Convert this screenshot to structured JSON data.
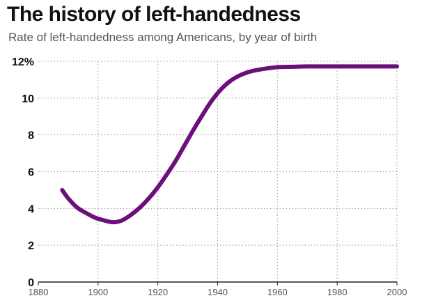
{
  "title": "The history of left-handedness",
  "subtitle": "Rate of left-handedness among Americans, by year of birth",
  "chart_data": {
    "type": "line",
    "title": "The history of left-handedness",
    "subtitle": "Rate of left-handedness among Americans, by year of birth",
    "xlabel": "",
    "ylabel": "",
    "xlim": [
      1880,
      2000
    ],
    "ylim": [
      0,
      12
    ],
    "x_ticks": [
      1880,
      1900,
      1920,
      1940,
      1960,
      1980,
      2000
    ],
    "x_tick_labels": [
      "1880",
      "1900",
      "1920",
      "1940",
      "1960",
      "1980",
      "2000"
    ],
    "y_ticks": [
      0,
      2,
      4,
      6,
      8,
      10,
      12
    ],
    "y_tick_labels": [
      "0",
      "2",
      "4",
      "6",
      "8",
      "10",
      "12%"
    ],
    "grid": true,
    "line_color": "#6b0f7a",
    "series": [
      {
        "x": [
          1888,
          1890,
          1893,
          1896,
          1899,
          1902,
          1905,
          1908,
          1911,
          1914,
          1917,
          1920,
          1923,
          1926,
          1929,
          1932,
          1935,
          1938,
          1941,
          1944,
          1947,
          1950,
          1953,
          1956,
          1960,
          1965,
          1970,
          1980,
          1990,
          2000
        ],
        "y": [
          5.0,
          4.55,
          4.05,
          3.75,
          3.5,
          3.35,
          3.25,
          3.35,
          3.65,
          4.05,
          4.55,
          5.15,
          5.85,
          6.6,
          7.45,
          8.3,
          9.1,
          9.85,
          10.45,
          10.9,
          11.2,
          11.4,
          11.52,
          11.6,
          11.68,
          11.7,
          11.72,
          11.72,
          11.72,
          11.72
        ]
      }
    ]
  }
}
